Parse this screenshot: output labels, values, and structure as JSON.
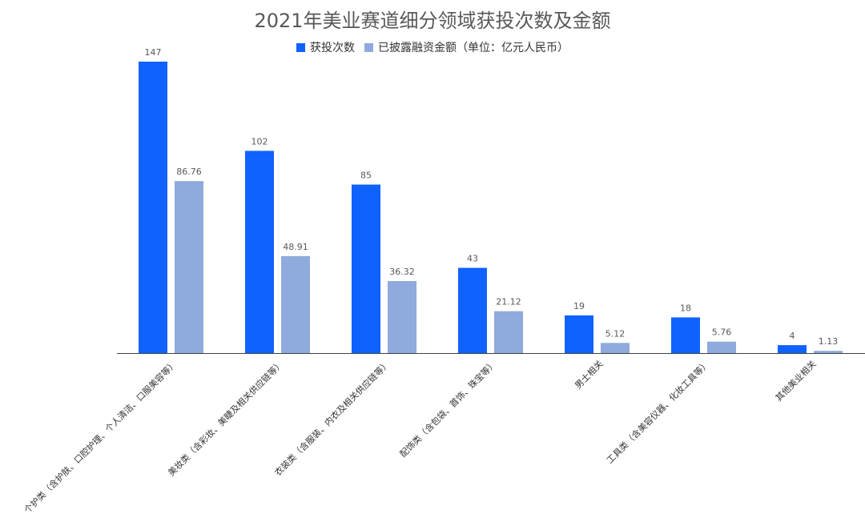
{
  "chart_data": {
    "type": "bar",
    "title": "2021年美业赛道细分领域获投次数及金额",
    "categories": [
      "个护类（含护肤、口腔护理、个人清洁、口服美容等）",
      "美妆类（含彩妆、美睫及相关供应链等）",
      "衣装类（含服装、内衣及相关供应链等）",
      "配饰类（含包袋、首饰、珠宝等）",
      "男士相关",
      "工具类（含美容仪器、化妆工具等）",
      "其他美业相关"
    ],
    "series": [
      {
        "name": "获投次数",
        "color": "#1062FE",
        "values": [
          147,
          102,
          85,
          43,
          19,
          18,
          4
        ],
        "labels": [
          "147",
          "102",
          "85",
          "43",
          "19",
          "18",
          "4"
        ]
      },
      {
        "name": "已披露融资金额（单位：亿元人民币）",
        "color": "#8FAADC",
        "values": [
          86.76,
          48.91,
          36.32,
          21.12,
          5.12,
          5.76,
          1.13
        ],
        "labels": [
          "86.76",
          "48.91",
          "36.32",
          "21.12",
          "5.12",
          "5.76",
          "1.13"
        ]
      }
    ],
    "ylim": [
      0,
      147
    ],
    "grid": false,
    "legend_position": "top-center"
  }
}
